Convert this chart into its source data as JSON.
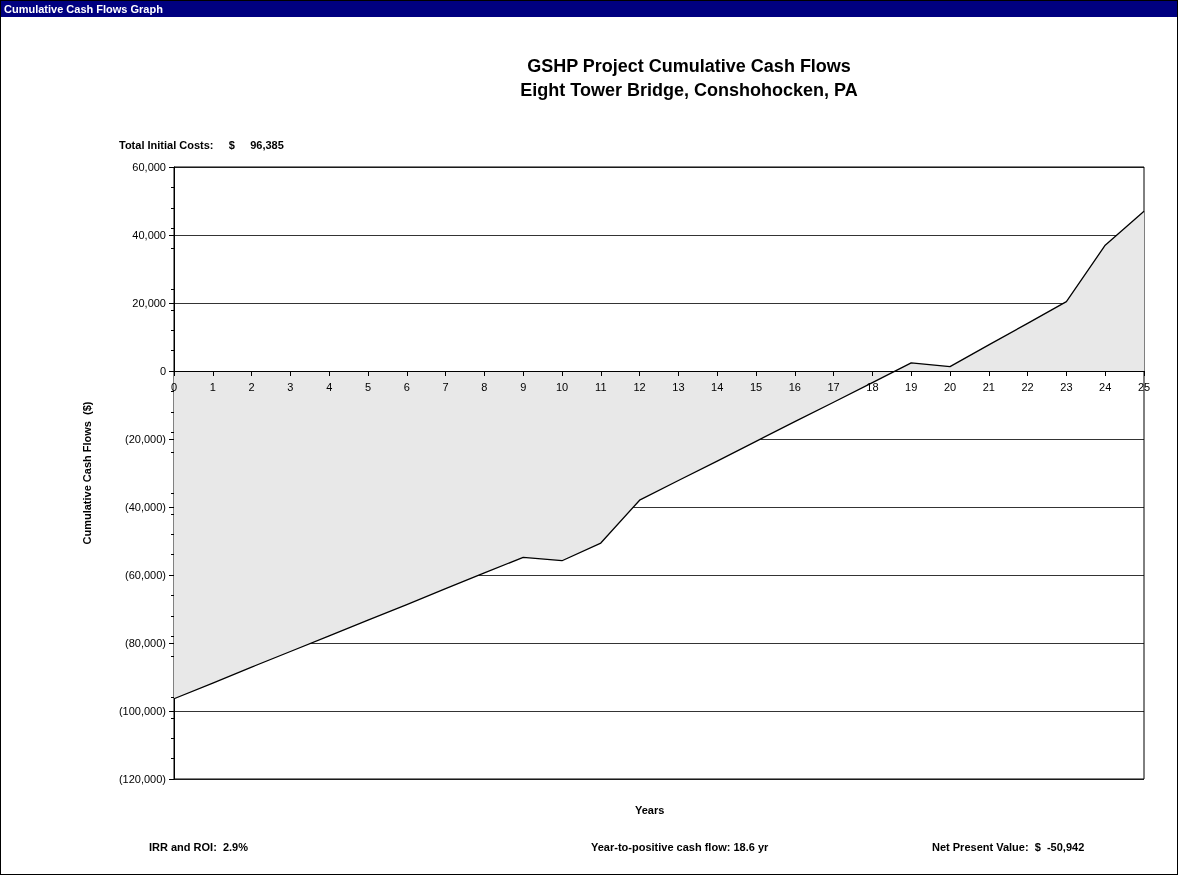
{
  "chart_data": {
    "type": "area",
    "title": "GSHP Project Cumulative Cash Flows\nEight Tower Bridge, Conshohocken, PA",
    "xlabel": "Years",
    "ylabel": "Cumulative Cash Flows  ($)",
    "annotations": [
      "Cumulative Cash Flows Graph",
      "Total Initial Costs:     $     96,385",
      "IRR and ROI:  2.9%",
      "Year-to-positive cash flow: 18.6 yr",
      "Net Present Value:  $  -50,942"
    ],
    "x": [
      0,
      1,
      2,
      3,
      4,
      5,
      6,
      7,
      8,
      9,
      10,
      11,
      12,
      13,
      14,
      15,
      16,
      17,
      18,
      19,
      20,
      21,
      22,
      23,
      24,
      25
    ],
    "series": [
      {
        "color": "#000000",
        "values": [
          -96400,
          -91800,
          -87100,
          -82500,
          -77900,
          -73300,
          -68700,
          -64000,
          -59400,
          -54800,
          -55800,
          -50600,
          -38000,
          -32200,
          -26500,
          -20700,
          -14900,
          -9200,
          -3400,
          2400,
          1300,
          7700,
          14000,
          20400,
          37000,
          47000
        ]
      }
    ],
    "xlim": [
      0,
      25
    ],
    "xticks": [
      0,
      1,
      2,
      3,
      4,
      5,
      6,
      7,
      8,
      9,
      10,
      11,
      12,
      13,
      14,
      15,
      16,
      17,
      18,
      19,
      20,
      21,
      22,
      23,
      24,
      25
    ],
    "ylim": [
      -120000,
      60000
    ],
    "yticks": [
      {
        "value": -120000,
        "label": "(120,000)"
      },
      {
        "value": -100000,
        "label": "(100,000)"
      },
      {
        "value": -80000,
        "label": "(80,000)"
      },
      {
        "value": -60000,
        "label": "(60,000)"
      },
      {
        "value": -40000,
        "label": "(40,000)"
      },
      {
        "value": -20000,
        "label": "(20,000)"
      },
      0,
      {
        "value": 20000,
        "label": "20,000"
      },
      {
        "value": 40000,
        "label": "40,000"
      },
      {
        "value": 60000,
        "label": "60,000"
      }
    ],
    "grid": "y",
    "marker": "none"
  }
}
